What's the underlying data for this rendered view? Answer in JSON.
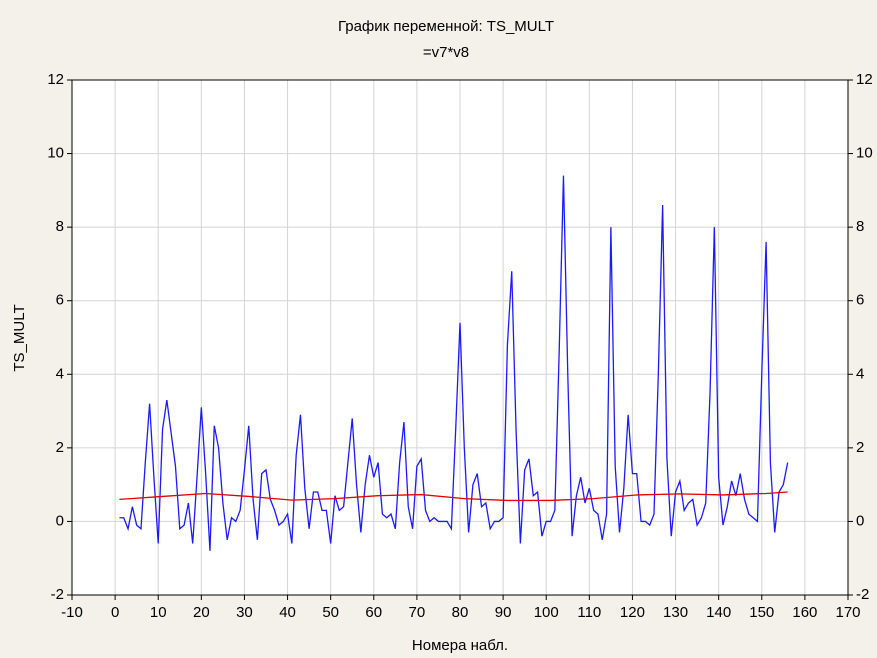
{
  "chart_data": {
    "type": "line",
    "title": "График переменной: TS_MULT",
    "subtitle": "=v7*v8",
    "x_label": "Номера набл.",
    "y_label": "TS_MULT",
    "xlim": [
      -10,
      170
    ],
    "xticks": [
      -10,
      0,
      10,
      20,
      30,
      40,
      50,
      60,
      70,
      80,
      90,
      100,
      110,
      120,
      130,
      140,
      150,
      160,
      170
    ],
    "ylim": [
      -2,
      12
    ],
    "yticks": [
      -2,
      0,
      2,
      4,
      6,
      8,
      10,
      12
    ],
    "y2lim": [
      -2,
      12
    ],
    "y2ticks": [
      -2,
      0,
      2,
      4,
      6,
      8,
      10,
      12
    ],
    "grid": true,
    "series": [
      {
        "color": "#1a1aff",
        "x": [
          1,
          2,
          3,
          4,
          5,
          6,
          7,
          8,
          9,
          10,
          11,
          12,
          13,
          14,
          15,
          16,
          17,
          18,
          19,
          20,
          21,
          22,
          23,
          24,
          25,
          26,
          27,
          28,
          29,
          30,
          31,
          32,
          33,
          34,
          35,
          36,
          37,
          38,
          39,
          40,
          41,
          42,
          43,
          44,
          45,
          46,
          47,
          48,
          49,
          50,
          51,
          52,
          53,
          54,
          55,
          56,
          57,
          58,
          59,
          60,
          61,
          62,
          63,
          64,
          65,
          66,
          67,
          68,
          69,
          70,
          71,
          72,
          73,
          74,
          75,
          76,
          77,
          78,
          79,
          80,
          81,
          82,
          83,
          84,
          85,
          86,
          87,
          88,
          89,
          90,
          91,
          92,
          93,
          94,
          95,
          96,
          97,
          98,
          99,
          100,
          101,
          102,
          103,
          104,
          105,
          106,
          107,
          108,
          109,
          110,
          111,
          112,
          113,
          114,
          115,
          116,
          117,
          118,
          119,
          120,
          121,
          122,
          123,
          124,
          125,
          126,
          127,
          128,
          129,
          130,
          131,
          132,
          133,
          134,
          135,
          136,
          137,
          138,
          139,
          140,
          141,
          142,
          143,
          144,
          145,
          146,
          147,
          148,
          149,
          150,
          151,
          152,
          153,
          154,
          155,
          156
        ],
        "values": [
          0.1,
          0.1,
          -0.2,
          0.4,
          -0.1,
          -0.2,
          1.6,
          3.2,
          1.2,
          -0.6,
          2.5,
          3.3,
          2.4,
          1.5,
          -0.2,
          -0.1,
          0.5,
          -0.6,
          1.2,
          3.1,
          1.3,
          -0.8,
          2.6,
          2.0,
          0.5,
          -0.5,
          0.1,
          0.0,
          0.3,
          1.4,
          2.6,
          0.6,
          -0.5,
          1.3,
          1.4,
          0.6,
          0.3,
          -0.1,
          0.0,
          0.2,
          -0.6,
          1.8,
          2.9,
          0.9,
          -0.2,
          0.8,
          0.8,
          0.3,
          0.3,
          -0.6,
          0.7,
          0.3,
          0.4,
          1.6,
          2.8,
          1.0,
          -0.3,
          1.0,
          1.8,
          1.2,
          1.6,
          0.2,
          0.1,
          0.2,
          -0.2,
          1.6,
          2.7,
          0.4,
          -0.2,
          1.5,
          1.7,
          0.3,
          0.0,
          0.1,
          0.0,
          0.0,
          0.0,
          -0.2,
          2.5,
          5.4,
          2.0,
          -0.3,
          1.0,
          1.3,
          0.4,
          0.5,
          -0.2,
          0.0,
          0.0,
          0.1,
          4.8,
          6.8,
          2.5,
          -0.6,
          1.4,
          1.7,
          0.7,
          0.8,
          -0.4,
          0.0,
          0.0,
          0.3,
          4.6,
          9.4,
          4.0,
          -0.4,
          0.7,
          1.2,
          0.5,
          0.9,
          0.3,
          0.2,
          -0.5,
          0.2,
          8.0,
          1.5,
          -0.3,
          0.9,
          2.9,
          1.3,
          1.3,
          0.0,
          0.0,
          -0.1,
          0.2,
          4.0,
          8.6,
          1.7,
          -0.4,
          0.8,
          1.1,
          0.3,
          0.5,
          0.6,
          -0.1,
          0.1,
          0.5,
          3.5,
          8.0,
          1.2,
          -0.1,
          0.4,
          1.1,
          0.7,
          1.3,
          0.6,
          0.2,
          0.1,
          0.0,
          4.0,
          7.6,
          1.6,
          -0.3,
          0.8,
          1.0,
          1.6
        ]
      },
      {
        "color": "#e00000",
        "x": [
          1,
          11,
          21,
          31,
          41,
          51,
          61,
          71,
          81,
          91,
          101,
          111,
          121,
          131,
          141,
          151,
          156
        ],
        "values": [
          0.6,
          0.68,
          0.76,
          0.68,
          0.58,
          0.62,
          0.7,
          0.73,
          0.62,
          0.57,
          0.57,
          0.62,
          0.72,
          0.75,
          0.72,
          0.76,
          0.8
        ]
      }
    ]
  }
}
